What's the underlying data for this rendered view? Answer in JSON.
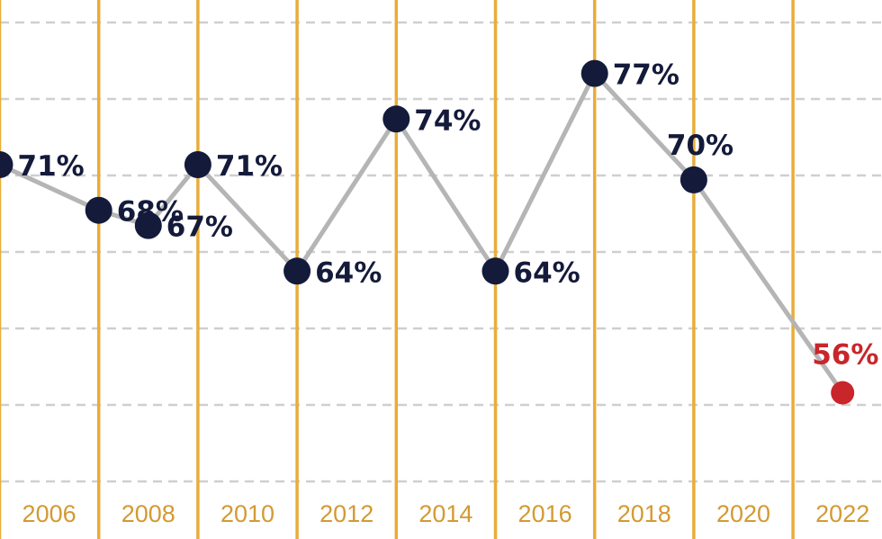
{
  "chart_data": {
    "type": "line",
    "title": "",
    "xlabel": "",
    "ylabel": "",
    "xlim": [
      2005,
      2023
    ],
    "ylim": [
      50,
      80
    ],
    "grid": "horizontal dashed; vertical bands between even years",
    "x_tick_labels": [
      "2006",
      "2008",
      "2010",
      "2012",
      "2014",
      "2016",
      "2018",
      "2020",
      "2022"
    ],
    "series": [
      {
        "name": "main",
        "x": [
          2005,
          2007,
          2008,
          2009,
          2011,
          2013,
          2015,
          2017,
          2019,
          2022
        ],
        "values": [
          71,
          68,
          67,
          71,
          64,
          74,
          64,
          77,
          70,
          56
        ],
        "labels": [
          "71%",
          "68%",
          "67%",
          "71%",
          "64%",
          "74%",
          "64%",
          "77%",
          "70%",
          "56%"
        ]
      }
    ],
    "highlight": {
      "index": 9,
      "x": 2022,
      "value": 56,
      "label": "56%"
    }
  },
  "colors": {
    "line": "#b5b5b5",
    "point": "#141a3a",
    "highlight": "#c8262b",
    "vertical_grid": "#e8ad3a",
    "horizontal_grid": "#cfcfcf",
    "tick_text": "#d39a33",
    "background": "#ffffff"
  }
}
